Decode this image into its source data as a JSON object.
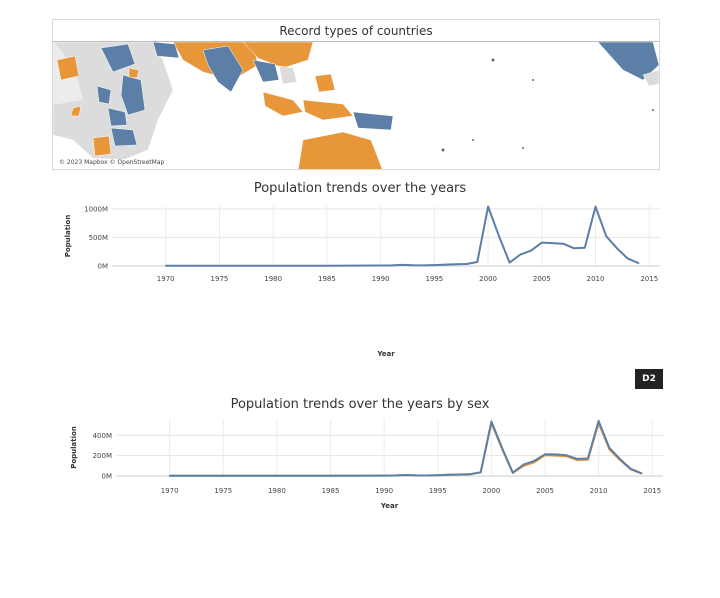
{
  "map": {
    "title": "Record types of countries",
    "attribution": "© 2023 Mapbox © OpenStreetMap",
    "colors": {
      "blue": "#5b7fa6",
      "orange": "#e8963a",
      "land": "#dcdcdc"
    }
  },
  "badge": "D2",
  "chart_data": [
    {
      "type": "line",
      "title": "Population trends over the years",
      "xlabel": "Year",
      "ylabel": "Population",
      "xlim": [
        1965,
        2016
      ],
      "ylim": [
        0,
        1050
      ],
      "xticks": [
        "1970",
        "1975",
        "1980",
        "1985",
        "1990",
        "1995",
        "2000",
        "2005",
        "2010",
        "2015"
      ],
      "yticks": [
        "0M",
        "500M",
        "1000M"
      ],
      "ytick_values": [
        0,
        500,
        1000
      ],
      "grid": true,
      "series": [
        {
          "color": "#5b7fa6",
          "x": [
            1970,
            1975,
            1980,
            1985,
            1990,
            1991,
            1992,
            1993,
            1994,
            1995,
            1996,
            1997,
            1998,
            1999,
            2000,
            2001,
            2002,
            2003,
            2004,
            2005,
            2006,
            2007,
            2008,
            2009,
            2010,
            2011,
            2012,
            2013,
            2014
          ],
          "y": [
            5,
            5,
            5,
            5,
            8,
            10,
            20,
            12,
            10,
            15,
            25,
            30,
            35,
            70,
            1040,
            530,
            60,
            200,
            270,
            410,
            400,
            390,
            310,
            320,
            1040,
            520,
            310,
            130,
            50
          ]
        }
      ]
    },
    {
      "type": "line",
      "title": "Population trends over the years by sex",
      "xlabel": "Year",
      "ylabel": "Population",
      "xlim": [
        1965,
        2016
      ],
      "ylim": [
        0,
        560
      ],
      "xticks": [
        "1970",
        "1975",
        "1980",
        "1985",
        "1990",
        "1995",
        "2000",
        "2005",
        "2010",
        "2015"
      ],
      "yticks": [
        "0M",
        "200M",
        "400M"
      ],
      "ytick_values": [
        0,
        200,
        400
      ],
      "grid": true,
      "series": [
        {
          "color": "#e8963a",
          "x": [
            1970,
            1975,
            1980,
            1985,
            1990,
            1991,
            1992,
            1993,
            1994,
            1995,
            1996,
            1997,
            1998,
            1999,
            2000,
            2001,
            2002,
            2003,
            2004,
            2005,
            2006,
            2007,
            2008,
            2009,
            2010,
            2011,
            2012,
            2013,
            2014
          ],
          "y": [
            3,
            3,
            3,
            3,
            4,
            5,
            10,
            6,
            5,
            8,
            13,
            15,
            17,
            35,
            520,
            265,
            30,
            100,
            135,
            205,
            200,
            195,
            155,
            160,
            520,
            260,
            155,
            65,
            25
          ]
        },
        {
          "color": "#5b7fa6",
          "x": [
            1970,
            1975,
            1980,
            1985,
            1990,
            1991,
            1992,
            1993,
            1994,
            1995,
            1996,
            1997,
            1998,
            1999,
            2000,
            2001,
            2002,
            2003,
            2004,
            2005,
            2006,
            2007,
            2008,
            2009,
            2010,
            2011,
            2012,
            2013,
            2014
          ],
          "y": [
            3,
            3,
            3,
            3,
            4,
            5,
            10,
            6,
            5,
            8,
            13,
            15,
            18,
            36,
            535,
            275,
            32,
            112,
            148,
            213,
            212,
            203,
            168,
            172,
            540,
            275,
            165,
            70,
            27
          ]
        }
      ]
    }
  ]
}
